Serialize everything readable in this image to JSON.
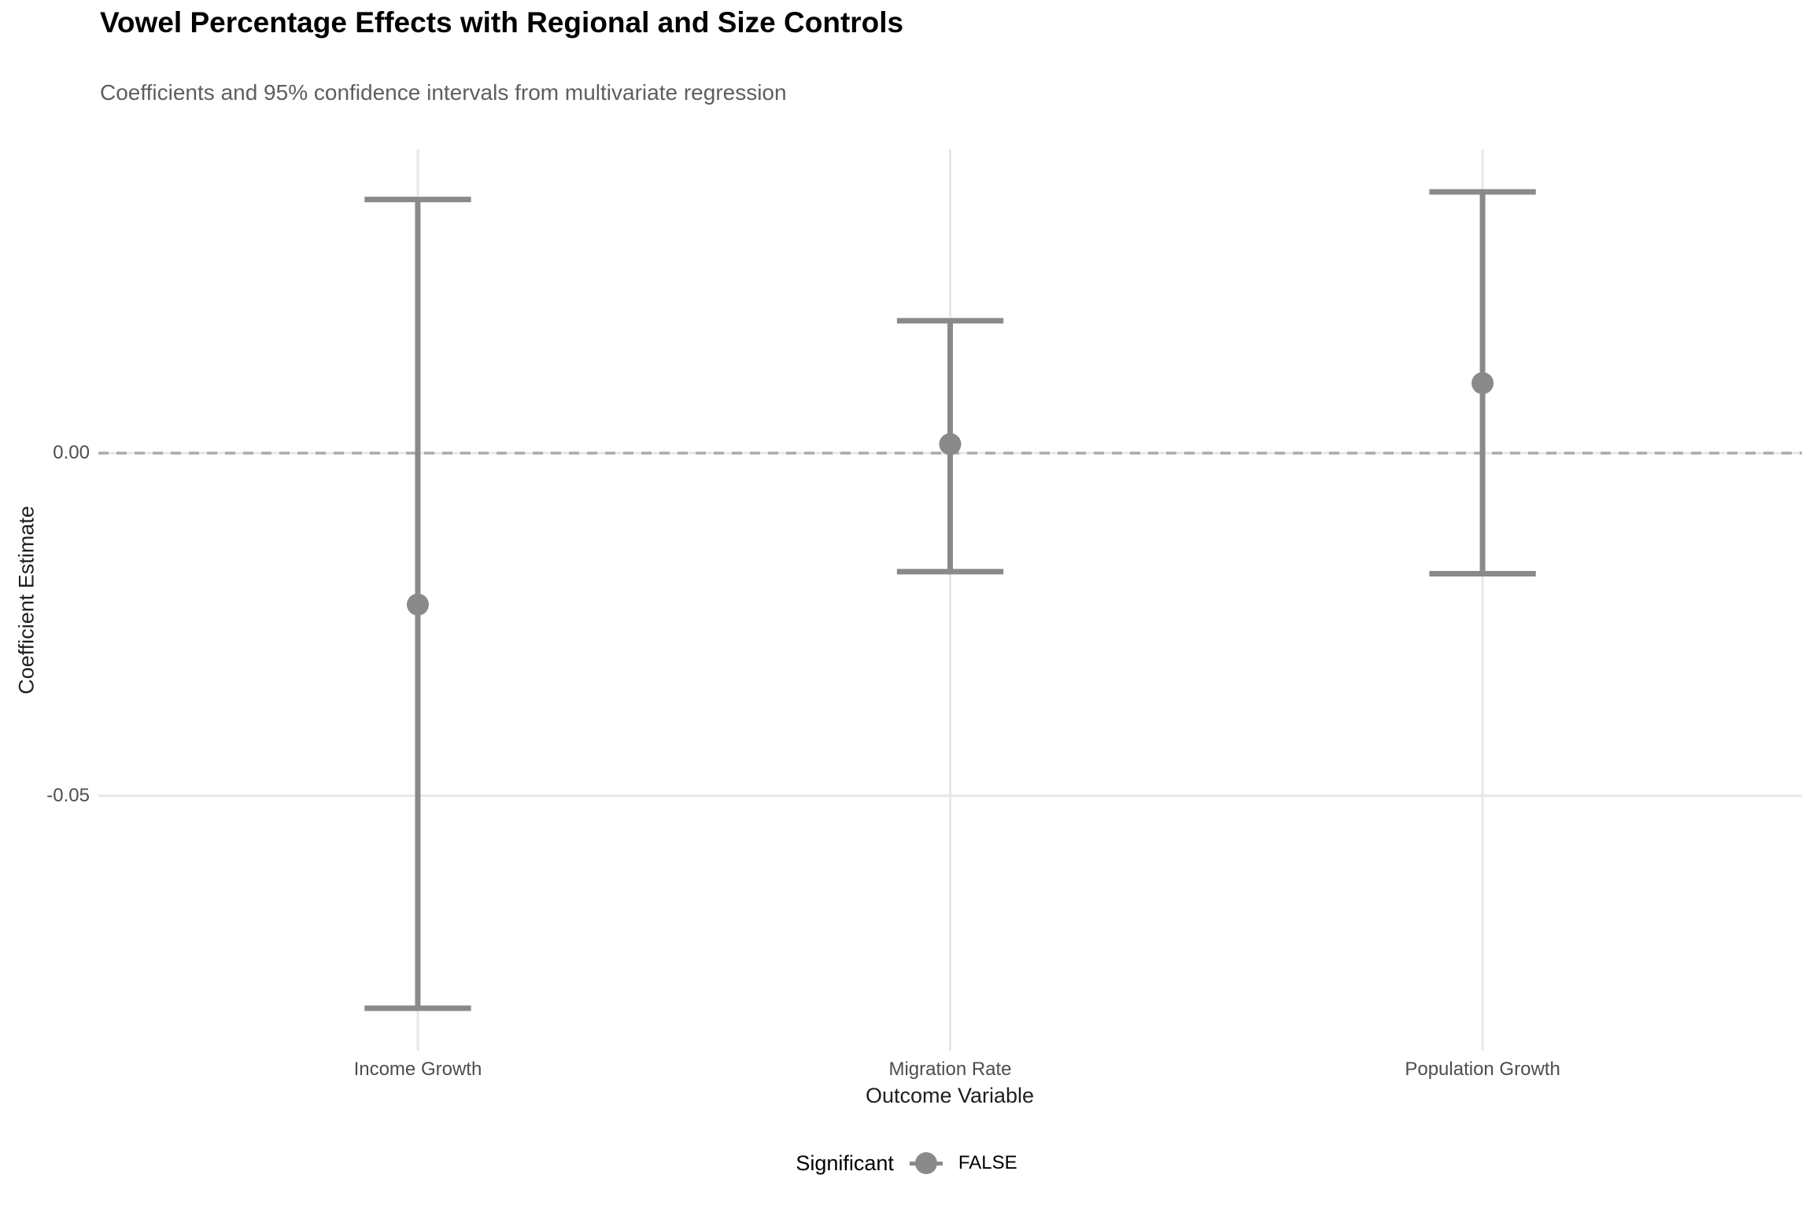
{
  "chart_data": {
    "type": "scatter",
    "variant": "pointrange-coefficient-plot",
    "title": "Vowel Percentage Effects with Regional and Size Controls",
    "subtitle": "Coefficients and 95% confidence intervals from multivariate regression",
    "xlabel": "Outcome Variable",
    "ylabel": "Coefficient Estimate",
    "categories": [
      "Income Growth",
      "Migration Rate",
      "Population Growth"
    ],
    "series": [
      {
        "name": "FALSE",
        "estimates": [
          -0.0221,
          0.0013,
          0.0102
        ],
        "ci_low": [
          -0.081,
          -0.0173,
          -0.0176
        ],
        "ci_high": [
          0.037,
          0.0193,
          0.0381
        ],
        "significant": [
          "FALSE",
          "FALSE",
          "FALSE"
        ]
      }
    ],
    "ylim": [
      -0.0872,
      0.0443
    ],
    "yticks": [
      {
        "value": 0.0,
        "label": "0.00"
      },
      {
        "value": -0.05,
        "label": "-0.05"
      }
    ],
    "zero_line": {
      "value": 0,
      "style": "dashed"
    },
    "grid": "major-only",
    "legend": {
      "position": "bottom",
      "title": "Significant",
      "entries": [
        {
          "label": "FALSE",
          "color": "#8a8a8a"
        }
      ]
    },
    "colors": {
      "point": "#8a8a8a",
      "errorbar": "#8a8a8a",
      "zero_line": "#ababab",
      "gridline": "#e7e7e7",
      "title_text": "#000000",
      "subtitle_text": "#5e5e5e",
      "axis_text": "#4d4d4d",
      "axis_title_text": "#1f1f1f",
      "background": "#ffffff"
    }
  }
}
